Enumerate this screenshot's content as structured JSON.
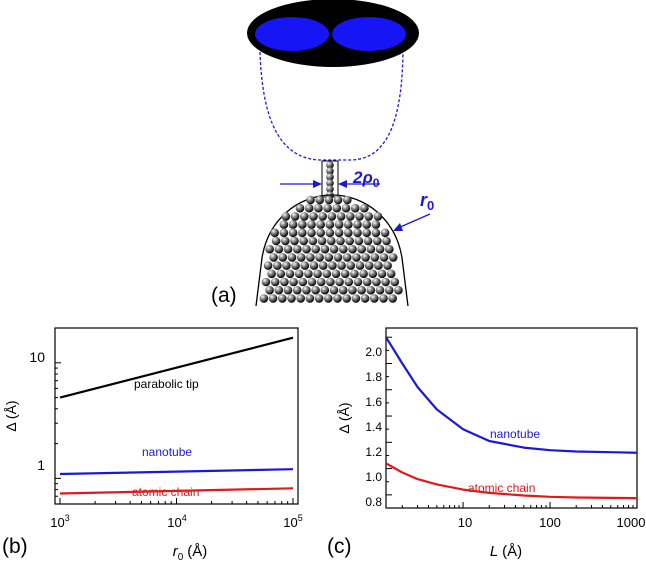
{
  "panel_a": {
    "label": "(a)",
    "rho_label_prefix": "2",
    "rho_label_symbol": "ρ",
    "rho_label_sub": "0",
    "r0_label_symbol": "r",
    "r0_label_sub": "0",
    "colors": {
      "blue": "#1a1ad6",
      "screen": "#000000",
      "spot": "#1515f5"
    }
  },
  "panel_b": {
    "label": "(b)",
    "ylabel": "Δ (Å)",
    "xlabel_symbol": "r",
    "xlabel_sub": "0",
    "xlabel_unit": "(Å)",
    "xticks": [
      {
        "base": "10",
        "exp": "3"
      },
      {
        "base": "10",
        "exp": "4"
      },
      {
        "base": "10",
        "exp": "5"
      }
    ],
    "yticks": [
      "1",
      "10"
    ],
    "annotations": [
      "parabolic tip",
      "nanotube",
      "atomic chain"
    ]
  },
  "panel_c": {
    "label": "(c)",
    "ylabel": "Δ (Å)",
    "xlabel_symbol": "L",
    "xlabel_unit": "(Å)",
    "xticks": [
      "10",
      "100",
      "1000"
    ],
    "yticks": [
      "0.8",
      "1.0",
      "1.2",
      "1.4",
      "1.6",
      "1.8",
      "2.0"
    ],
    "annotations": [
      "nanotube",
      "atomic chain"
    ]
  },
  "chart_data": [
    {
      "type": "line",
      "panel": "(b)",
      "xlabel": "r0 (Å)",
      "ylabel": "Δ (Å)",
      "xscale": "log",
      "yscale": "log",
      "xlim": [
        1000,
        100000
      ],
      "ylim": [
        0.6,
        20
      ],
      "series": [
        {
          "name": "parabolic tip",
          "color": "#000000",
          "x": [
            1000,
            100000
          ],
          "y": [
            5.0,
            16.5
          ]
        },
        {
          "name": "nanotube",
          "color": "#1a1ad6",
          "x": [
            1000,
            100000
          ],
          "y": [
            1.09,
            1.2
          ]
        },
        {
          "name": "atomic chain",
          "color": "#e01a1a",
          "x": [
            1000,
            100000
          ],
          "y": [
            0.74,
            0.82
          ]
        }
      ]
    },
    {
      "type": "line",
      "panel": "(c)",
      "xlabel": "L (Å)",
      "ylabel": "Δ (Å)",
      "xscale": "log",
      "xlim": [
        1.3,
        1000
      ],
      "ylim": [
        0.7,
        2.07
      ],
      "series": [
        {
          "name": "nanotube",
          "color": "#1a1ad6",
          "x": [
            1.3,
            2,
            3,
            5,
            10,
            20,
            50,
            100,
            200,
            500,
            1000
          ],
          "y": [
            2.0,
            1.8,
            1.62,
            1.45,
            1.3,
            1.21,
            1.16,
            1.14,
            1.13,
            1.125,
            1.12
          ]
        },
        {
          "name": "atomic chain",
          "color": "#e01a1a",
          "x": [
            1.3,
            2,
            3,
            5,
            10,
            20,
            50,
            100,
            200,
            500,
            1000
          ],
          "y": [
            1.04,
            0.97,
            0.92,
            0.88,
            0.84,
            0.815,
            0.795,
            0.785,
            0.78,
            0.777,
            0.775
          ]
        }
      ]
    }
  ]
}
